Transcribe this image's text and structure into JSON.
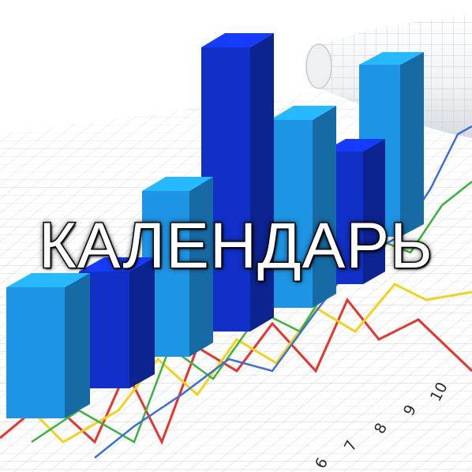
{
  "poster": {
    "title": "КАЛЕНДАРЬ",
    "axis_numbers": [
      "6",
      "7",
      "8",
      "9",
      "10"
    ]
  },
  "colors": {
    "paper": "#ffffff",
    "grid": "#cfd3d8",
    "bar_light": "#1e94e4",
    "bar_dark": "#1030c8",
    "line_red": "#e8352b",
    "line_yellow": "#f2d21a",
    "line_green": "#3cb43c",
    "line_blue": "#3a6fe0"
  },
  "icons": [
    "bar-chart-illustration",
    "paper-roll"
  ]
}
